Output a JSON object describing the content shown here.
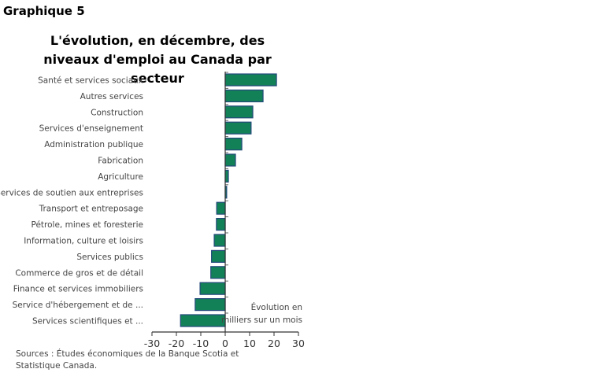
{
  "header": {
    "label": "Graphique 5"
  },
  "chart_data": {
    "type": "bar",
    "orientation": "horizontal",
    "title": "L'évolution, en décembre, des niveaux d'emploi au Canada par secteur",
    "categories": [
      "Santé et services sociaux",
      "Autres services",
      "Construction",
      "Services d'enseignement",
      "Administration publique",
      "Fabrication",
      "Agriculture",
      "Services de soutien aux entreprises",
      "Transport et entreposage",
      "Pétrole, mines et foresterie",
      "Information, culture et loisirs",
      "Services publics",
      "Commerce de gros et de détail",
      "Finance et services immobiliers",
      "Service d'hébergement et de ...",
      "Services scientifiques et ..."
    ],
    "values": [
      21,
      15.5,
      11.3,
      10.6,
      6.8,
      4.2,
      1.3,
      0.6,
      -3.5,
      -3.6,
      -4.5,
      -5.6,
      -5.9,
      -10.3,
      -12.3,
      -18.3
    ],
    "xlim": [
      -30,
      30
    ],
    "xticks": [
      -30,
      -20,
      -10,
      0,
      10,
      20,
      30
    ],
    "xticklabels": [
      "-30",
      "-20",
      "-10",
      "0",
      "10",
      "20",
      "30"
    ],
    "annotation": [
      "Évolution en",
      "milliers sur un mois"
    ],
    "colors": {
      "bar": "#138158",
      "edge": "#22487a",
      "axis": "#333333"
    },
    "grid": false
  },
  "source": "Sources : Études économiques de la Banque Scotia et Statistique Canada."
}
